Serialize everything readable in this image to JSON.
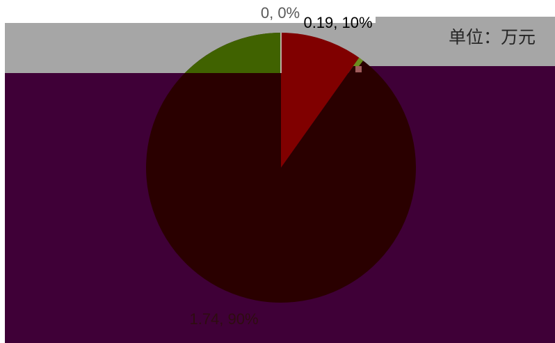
{
  "chart_data": {
    "type": "pie",
    "values": [
      0,
      0.19,
      1.74
    ],
    "percents": [
      0,
      10,
      90
    ],
    "data_labels": [
      "0, 0%",
      "0.19, 10%",
      "1.74, 90%"
    ],
    "colors": [
      "#406200",
      "#800000",
      "#2a0000"
    ],
    "unit_label": "单位：万元",
    "legend": false
  }
}
